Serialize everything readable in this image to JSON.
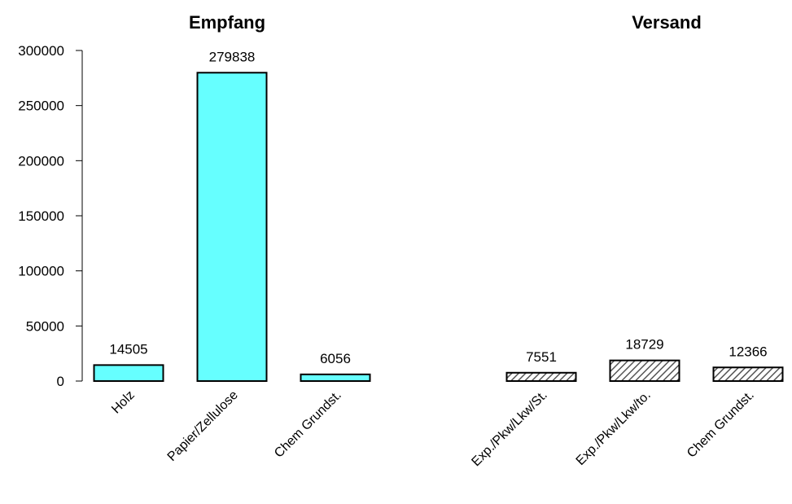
{
  "chart_data": {
    "type": "bar",
    "ylim": [
      0,
      300000
    ],
    "yticks": [
      0,
      50000,
      100000,
      150000,
      200000,
      250000,
      300000
    ],
    "grid": false,
    "groups": [
      {
        "title": "Empfang",
        "color": "#66ffff",
        "pattern": "solid",
        "categories": [
          "Holz",
          "Papier/Zellulose",
          "Chem Grundst."
        ],
        "values": [
          14505,
          279838,
          6056
        ]
      },
      {
        "title": "Versand",
        "color": "#a0a0a0",
        "pattern": "hatched",
        "categories": [
          "Exp./Pkw/Lkw/St.",
          "Exp./Pkw/Lkw/to.",
          "Chem Grundst."
        ],
        "values": [
          7551,
          18729,
          12366
        ]
      }
    ]
  }
}
